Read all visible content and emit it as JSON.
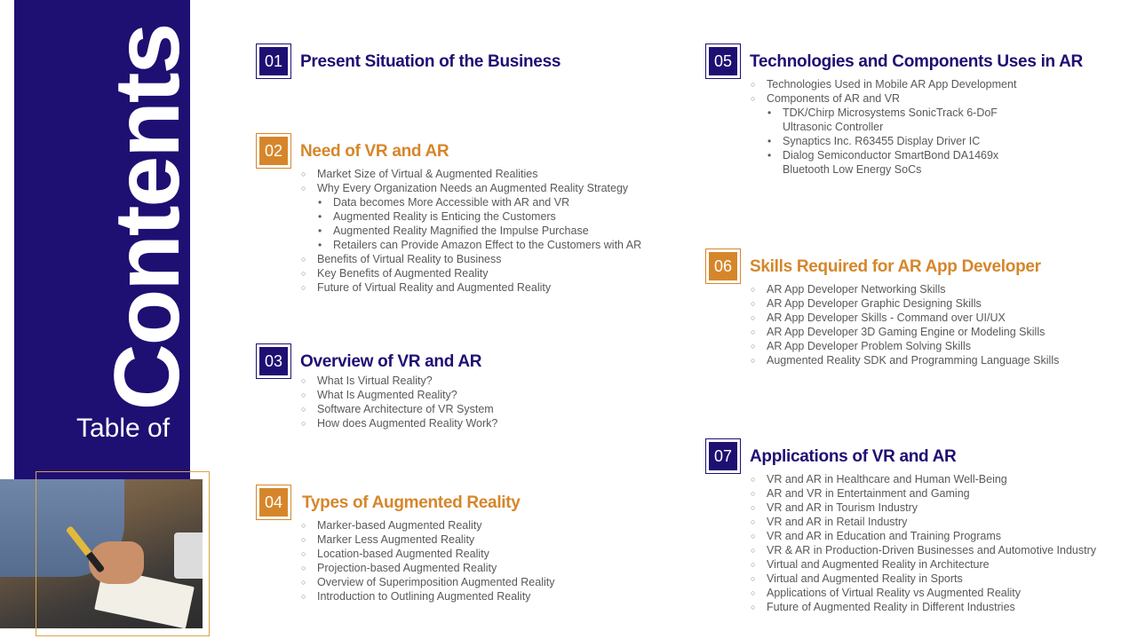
{
  "title": {
    "main": "Contents",
    "sub": "Table of"
  },
  "sections": [
    {
      "num": "01",
      "heading": "Present Situation of the Business",
      "items": []
    },
    {
      "num": "02",
      "heading": "Need of VR and AR",
      "items": [
        {
          "text": "Market Size of Virtual & Augmented Realities"
        },
        {
          "text": "Why Every Organization Needs an Augmented Reality Strategy"
        },
        {
          "text": "Data becomes More Accessible with AR and VR"
        },
        {
          "text": "Augmented Reality is Enticing the Customers"
        },
        {
          "text": "Augmented Reality Magnified the Impulse Purchase"
        },
        {
          "text": "Retailers can Provide Amazon Effect to the Customers with AR"
        },
        {
          "text": "Benefits of Virtual Reality to Business"
        },
        {
          "text": "Key Benefits of Augmented Reality"
        },
        {
          "text": "Future of Virtual Reality and Augmented Reality"
        }
      ]
    },
    {
      "num": "03",
      "heading": "Overview of VR and AR",
      "items": [
        {
          "text": "What Is Virtual Reality?"
        },
        {
          "text": "What Is Augmented Reality?"
        },
        {
          "text": "Software Architecture of VR System"
        },
        {
          "text": "How does Augmented Reality Work?"
        }
      ]
    },
    {
      "num": "04",
      "heading": "Types of Augmented Reality",
      "items": [
        {
          "text": "Marker-based Augmented Reality"
        },
        {
          "text": "Marker Less Augmented Reality"
        },
        {
          "text": "Location-based Augmented Reality"
        },
        {
          "text": "Projection-based Augmented Reality"
        },
        {
          "text": "Overview of Superimposition Augmented Reality"
        },
        {
          "text": "Introduction to Outlining Augmented Reality"
        }
      ]
    },
    {
      "num": "05",
      "heading": "Technologies and Components Uses in AR",
      "items": [
        {
          "text": "Technologies Used in Mobile AR App Development"
        },
        {
          "text": "Components of AR and VR"
        },
        {
          "text": "TDK/Chirp Microsystems SonicTrack 6-DoF"
        },
        {
          "text": "Ultrasonic Controller"
        },
        {
          "text": "Synaptics Inc. R63455 Display Driver IC"
        },
        {
          "text": "Dialog Semiconductor SmartBond DA1469x"
        },
        {
          "text": "Bluetooth Low Energy SoCs"
        }
      ]
    },
    {
      "num": "06",
      "heading": "Skills Required for AR App Developer",
      "items": [
        {
          "text": "AR App Developer Networking Skills"
        },
        {
          "text": "AR App Developer Graphic Designing Skills"
        },
        {
          "text": "AR App Developer Skills - Command over UI/UX"
        },
        {
          "text": "AR App Developer 3D Gaming Engine or Modeling Skills"
        },
        {
          "text": "AR App Developer Problem Solving Skills"
        },
        {
          "text": "Augmented Reality SDK and Programming Language Skills"
        }
      ]
    },
    {
      "num": "07",
      "heading": "Applications of VR and AR",
      "items": [
        {
          "text": "VR and AR in Healthcare and Human Well-Being"
        },
        {
          "text": "AR and VR in Entertainment and Gaming"
        },
        {
          "text": "VR and AR in Tourism Industry"
        },
        {
          "text": "VR and AR in Retail Industry"
        },
        {
          "text": "VR and AR in Education and Training Programs"
        },
        {
          "text": "VR & AR in Production-Driven Businesses and Automotive Industry"
        },
        {
          "text": "Virtual and Augmented Reality in Architecture"
        },
        {
          "text": "Virtual and Augmented Reality in Sports"
        },
        {
          "text": "Applications of Virtual Reality vs Augmented Reality"
        },
        {
          "text": "Future of Augmented Reality in Different Industries"
        }
      ]
    }
  ]
}
